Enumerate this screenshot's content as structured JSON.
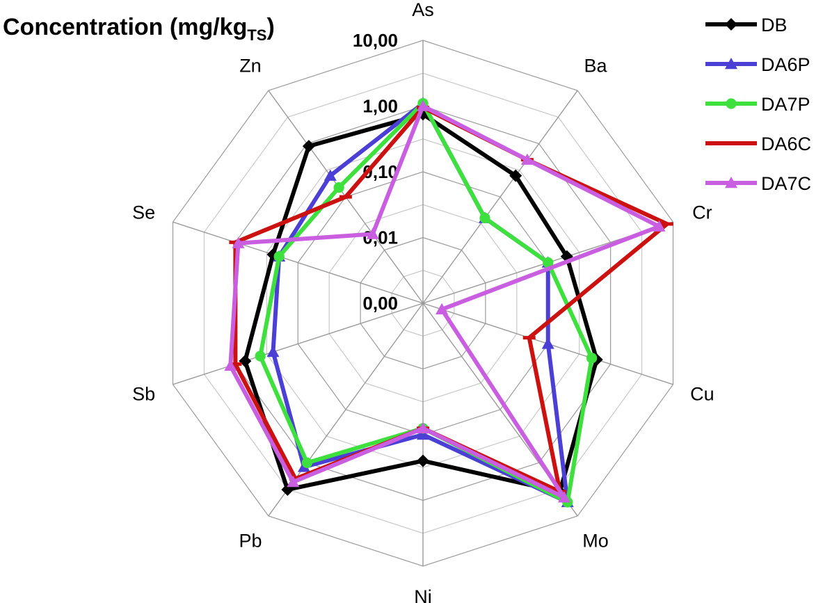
{
  "chart_data": {
    "type": "radar",
    "title": "Concentration (mg/kg",
    "title_subscript": "TS",
    "scale": "log",
    "axes": [
      "As",
      "Ba",
      "Cr",
      "Cu",
      "Mo",
      "Ni",
      "Pb",
      "Sb",
      "Se",
      "Zn"
    ],
    "rlim": [
      0.001,
      10
    ],
    "ticks": [
      {
        "value": 0.001,
        "label": "0,00"
      },
      {
        "value": 0.01,
        "label": "0,01"
      },
      {
        "value": 0.1,
        "label": "0,10"
      },
      {
        "value": 1,
        "label": "1,00"
      },
      {
        "value": 10,
        "label": "10,00"
      }
    ],
    "legend_position": "top-right",
    "series": [
      {
        "name": "DB",
        "color": "#000000",
        "marker": "diamond",
        "values": [
          0.75,
          0.25,
          0.2,
          0.6,
          3.5,
          0.25,
          3.2,
          0.7,
          0.25,
          0.9
        ]
      },
      {
        "name": "DA6P",
        "color": "#4b3fd6",
        "marker": "triangle",
        "values": [
          1.1,
          0.04,
          0.1,
          0.1,
          5.5,
          0.1,
          1.2,
          0.25,
          0.2,
          0.25
        ]
      },
      {
        "name": "DA7P",
        "color": "#3ee03e",
        "marker": "circle",
        "values": [
          1.1,
          0.04,
          0.1,
          0.5,
          5.5,
          0.08,
          1.0,
          0.4,
          0.2,
          0.15
        ]
      },
      {
        "name": "DA6C",
        "color": "#cc1111",
        "marker": "dash",
        "values": [
          0.95,
          0.5,
          8.0,
          0.05,
          3.5,
          0.08,
          2.0,
          1.0,
          1.0,
          0.1
        ]
      },
      {
        "name": "DA7C",
        "color": "#c95fe0",
        "marker": "triangle",
        "values": [
          1.0,
          0.5,
          6.0,
          0.002,
          4.5,
          0.08,
          2.3,
          1.2,
          0.9,
          0.02
        ]
      }
    ]
  }
}
